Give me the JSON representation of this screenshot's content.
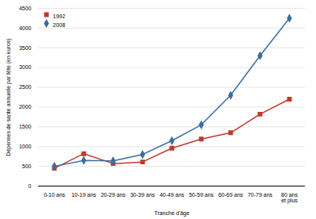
{
  "chart_data": {
    "type": "line",
    "xlabel": "Tranche d'âge",
    "ylabel": "Dépenses de santé annuelle par tête (en euros)",
    "categories": [
      "0-10 ans",
      "10-19 ans",
      "20-29 ans",
      "30-39 ans",
      "40-49 ans",
      "50-59 ans",
      "60-69 ans",
      "70-79 ans",
      "80 ans\net plus"
    ],
    "series": [
      {
        "name": "1992",
        "color": "#c0392b",
        "marker": "square",
        "values": [
          450,
          820,
          570,
          610,
          960,
          1190,
          1350,
          1820,
          2200
        ]
      },
      {
        "name": "2008",
        "color": "#3a6fa0",
        "marker": "diamond",
        "values": [
          500,
          650,
          640,
          800,
          1150,
          1550,
          2300,
          3300,
          4250
        ]
      }
    ],
    "ylim": [
      0,
      4500
    ],
    "yticks": [
      0,
      500,
      1000,
      1500,
      2000,
      2500,
      3000,
      3500,
      4000,
      4500
    ],
    "grid": true,
    "legend": "upper left"
  }
}
